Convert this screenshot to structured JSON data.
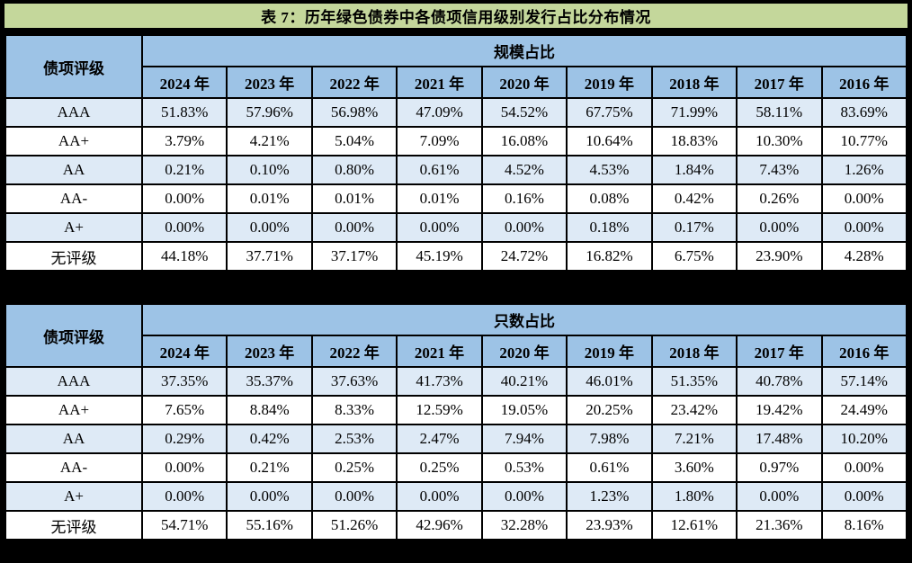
{
  "title": "表 7：历年绿色债券中各债项信用级别发行占比分布情况",
  "colors": {
    "title_bar_green": "#C4D79B",
    "header_blue": "#9DC3E6",
    "stripe_blue": "#DEEAF6",
    "stripe_white": "#FFFFFF",
    "border_black": "#000000",
    "text_black": "#000000"
  },
  "tables": [
    {
      "corner_label": "债项评级",
      "group_header": "规模占比",
      "years": [
        "2024 年",
        "2023 年",
        "2022 年",
        "2021 年",
        "2020 年",
        "2019 年",
        "2018 年",
        "2017 年",
        "2016 年"
      ],
      "rows": [
        {
          "label": "AAA",
          "values": [
            "51.83%",
            "57.96%",
            "56.98%",
            "47.09%",
            "54.52%",
            "67.75%",
            "71.99%",
            "58.11%",
            "83.69%"
          ]
        },
        {
          "label": "AA+",
          "values": [
            "3.79%",
            "4.21%",
            "5.04%",
            "7.09%",
            "16.08%",
            "10.64%",
            "18.83%",
            "10.30%",
            "10.77%"
          ]
        },
        {
          "label": "AA",
          "values": [
            "0.21%",
            "0.10%",
            "0.80%",
            "0.61%",
            "4.52%",
            "4.53%",
            "1.84%",
            "7.43%",
            "1.26%"
          ]
        },
        {
          "label": "AA-",
          "values": [
            "0.00%",
            "0.01%",
            "0.01%",
            "0.01%",
            "0.16%",
            "0.08%",
            "0.42%",
            "0.26%",
            "0.00%"
          ]
        },
        {
          "label": "A+",
          "values": [
            "0.00%",
            "0.00%",
            "0.00%",
            "0.00%",
            "0.00%",
            "0.18%",
            "0.17%",
            "0.00%",
            "0.00%"
          ]
        },
        {
          "label": "无评级",
          "values": [
            "44.18%",
            "37.71%",
            "37.17%",
            "45.19%",
            "24.72%",
            "16.82%",
            "6.75%",
            "23.90%",
            "4.28%"
          ]
        }
      ]
    },
    {
      "corner_label": "债项评级",
      "group_header": "只数占比",
      "years": [
        "2024 年",
        "2023 年",
        "2022 年",
        "2021 年",
        "2020 年",
        "2019 年",
        "2018 年",
        "2017 年",
        "2016 年"
      ],
      "rows": [
        {
          "label": "AAA",
          "values": [
            "37.35%",
            "35.37%",
            "37.63%",
            "41.73%",
            "40.21%",
            "46.01%",
            "51.35%",
            "40.78%",
            "57.14%"
          ]
        },
        {
          "label": "AA+",
          "values": [
            "7.65%",
            "8.84%",
            "8.33%",
            "12.59%",
            "19.05%",
            "20.25%",
            "23.42%",
            "19.42%",
            "24.49%"
          ]
        },
        {
          "label": "AA",
          "values": [
            "0.29%",
            "0.42%",
            "2.53%",
            "2.47%",
            "7.94%",
            "7.98%",
            "7.21%",
            "17.48%",
            "10.20%"
          ]
        },
        {
          "label": "AA-",
          "values": [
            "0.00%",
            "0.21%",
            "0.25%",
            "0.25%",
            "0.53%",
            "0.61%",
            "3.60%",
            "0.97%",
            "0.00%"
          ]
        },
        {
          "label": "A+",
          "values": [
            "0.00%",
            "0.00%",
            "0.00%",
            "0.00%",
            "0.00%",
            "1.23%",
            "1.80%",
            "0.00%",
            "0.00%"
          ]
        },
        {
          "label": "无评级",
          "values": [
            "54.71%",
            "55.16%",
            "51.26%",
            "42.96%",
            "32.28%",
            "23.93%",
            "12.61%",
            "21.36%",
            "8.16%"
          ]
        }
      ]
    }
  ]
}
